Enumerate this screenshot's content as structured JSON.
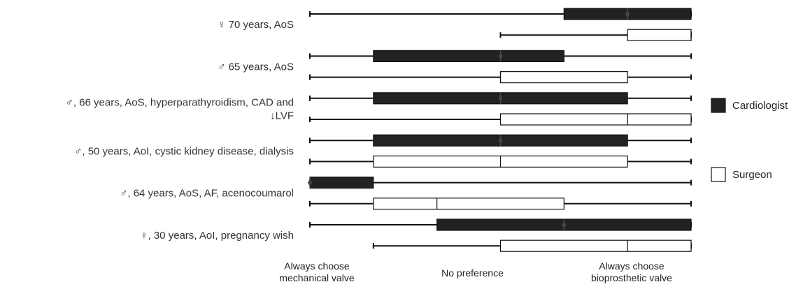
{
  "chart_data": {
    "type": "boxplot",
    "title": "",
    "x_scale": {
      "min": 0,
      "max": 6
    },
    "x_labels": [
      {
        "value": 0,
        "lines": [
          "Always choose",
          "mechanical valve"
        ]
      },
      {
        "value": 3,
        "lines": [
          "No preference"
        ]
      },
      {
        "value": 6,
        "lines": [
          "Always choose",
          "bioprosthetic valve"
        ]
      }
    ],
    "legend": [
      {
        "key": "cardiologist",
        "label": "Cardiologist",
        "fill": "#222222"
      },
      {
        "key": "surgeon",
        "label": "Surgeon",
        "fill": "#ffffff"
      }
    ],
    "cases": [
      {
        "label_lines": [
          "♀ 70 years, AoS"
        ],
        "cardiologist": {
          "min": 0,
          "q1": 4,
          "median": 5,
          "q3": 6,
          "max": 6
        },
        "surgeon": {
          "min": 3,
          "q1": 5,
          "median": 6,
          "q3": 6,
          "max": 6
        }
      },
      {
        "label_lines": [
          "♂ 65 years, AoS"
        ],
        "cardiologist": {
          "min": 0,
          "q1": 1,
          "median": 3,
          "q3": 4,
          "max": 6
        },
        "surgeon": {
          "min": 0,
          "q1": 3,
          "median": 3,
          "q3": 5,
          "max": 6
        }
      },
      {
        "label_lines": [
          "♂, 66 years, AoS, hyperparathyroidism, CAD and",
          "↓LVF"
        ],
        "cardiologist": {
          "min": 0,
          "q1": 1,
          "median": 3,
          "q3": 5,
          "max": 6
        },
        "surgeon": {
          "min": 0,
          "q1": 3,
          "median": 5,
          "q3": 6,
          "max": 6
        }
      },
      {
        "label_lines": [
          "♂, 50 years, AoI, cystic kidney disease, dialysis"
        ],
        "cardiologist": {
          "min": 0,
          "q1": 1,
          "median": 3,
          "q3": 5,
          "max": 6
        },
        "surgeon": {
          "min": 0,
          "q1": 1,
          "median": 3,
          "q3": 5,
          "max": 6
        }
      },
      {
        "label_lines": [
          "♂, 64 years, AoS, AF, acenocoumarol"
        ],
        "cardiologist": {
          "min": 0,
          "q1": 0,
          "median": 0,
          "q3": 1,
          "max": 6
        },
        "surgeon": {
          "min": 0,
          "q1": 1,
          "median": 2,
          "q3": 4,
          "max": 6
        }
      },
      {
        "label_lines": [
          "♀, 30 years, AoI, pregnancy wish"
        ],
        "cardiologist": {
          "min": 0,
          "q1": 2,
          "median": 4,
          "q3": 6,
          "max": 6
        },
        "surgeon": {
          "min": 1,
          "q1": 3,
          "median": 5,
          "q3": 6,
          "max": 6
        }
      }
    ]
  }
}
